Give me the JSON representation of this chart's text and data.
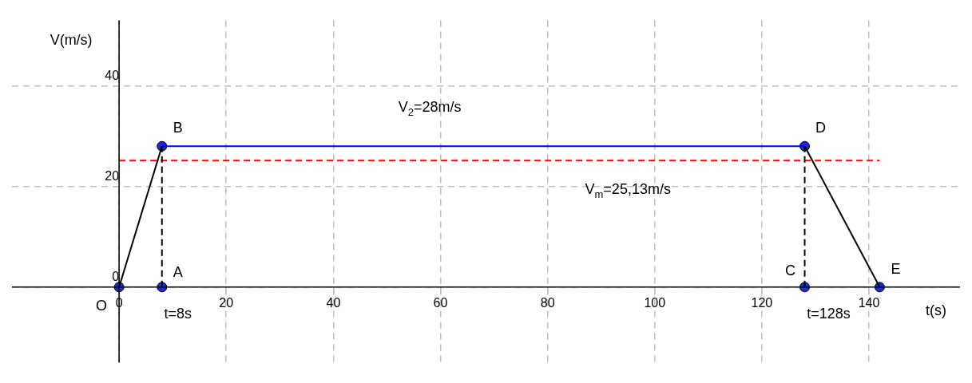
{
  "chart_data": {
    "type": "line",
    "xlabel": "t(s)",
    "ylabel": "V(m/s)",
    "xlim": [
      -20,
      157
    ],
    "ylim": [
      -15,
      53
    ],
    "xticks": [
      0,
      20,
      40,
      60,
      80,
      100,
      120,
      140
    ],
    "yticks": [
      0,
      20,
      40
    ],
    "grid": true,
    "legend": false,
    "series": [
      {
        "type": "line",
        "color": "#000000",
        "x": [
          0,
          8
        ],
        "values": [
          0,
          28
        ],
        "marker": "none"
      },
      {
        "type": "line",
        "color": "#0000ff",
        "x": [
          8,
          128
        ],
        "values": [
          28,
          28
        ],
        "marker": "none"
      },
      {
        "type": "line",
        "color": "#000000",
        "x": [
          128,
          142
        ],
        "values": [
          28,
          0
        ],
        "marker": "none"
      },
      {
        "type": "line",
        "color": "#000000",
        "x": [
          8,
          8
        ],
        "values": [
          0,
          28
        ],
        "marker": "none",
        "line_style": "dashed"
      },
      {
        "type": "line",
        "color": "#000000",
        "x": [
          128,
          128
        ],
        "values": [
          0,
          28
        ],
        "marker": "none",
        "line_style": "dashed"
      },
      {
        "type": "line",
        "color": "#ff0000",
        "x": [
          0,
          142
        ],
        "values": [
          25.13,
          25.13
        ],
        "marker": "none",
        "line_style": "dashed"
      },
      {
        "type": "scatter",
        "color": "#1a2bd6",
        "x": [
          0,
          8,
          8,
          128,
          128,
          142
        ],
        "values": [
          0,
          0,
          28,
          0,
          28,
          0
        ],
        "marker": "circle"
      }
    ],
    "annotations": [
      {
        "text": "V$_{2}$=28m/s",
        "x": 58,
        "y": 28
      },
      {
        "text": "V$_{m}$=25,13m/s",
        "x": 95,
        "y": 25.13
      },
      {
        "text": "t=8s",
        "x": 8,
        "y": 0
      },
      {
        "text": "t=128s",
        "x": 128,
        "y": 0
      },
      {
        "text": "O",
        "x": 0,
        "y": 0
      },
      {
        "text": "A",
        "x": 8,
        "y": 0
      },
      {
        "text": "B",
        "x": 8,
        "y": 28
      },
      {
        "text": "C",
        "x": 128,
        "y": 0
      },
      {
        "text": "D",
        "x": 128,
        "y": 28
      },
      {
        "text": "E",
        "x": 142,
        "y": 0
      }
    ]
  }
}
